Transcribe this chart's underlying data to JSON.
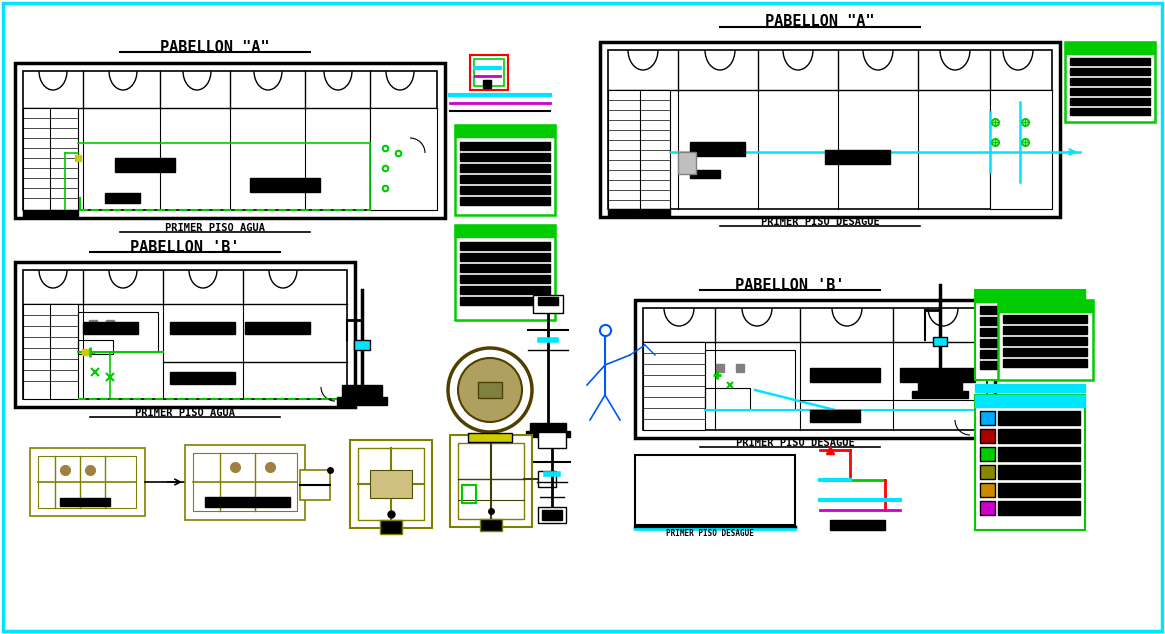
{
  "bg_color": "#ffffff",
  "border_color": "#00e5ff",
  "colors": {
    "black": "#000000",
    "cyan": "#00e5ff",
    "green": "#00cc00",
    "yellow": "#cccc00",
    "red": "#cc0000",
    "magenta": "#cc00cc",
    "olive": "#808000",
    "gray": "#808080",
    "white": "#ffffff",
    "blue": "#0055ff",
    "dark_olive": "#504000"
  },
  "titles": {
    "pab_a_water": "PABELLON \"A\"",
    "pab_a_water_sub": "PRIMER PISO AGUA",
    "pab_a_drain": "PABELLON \"A\"",
    "pab_a_drain_sub": "PRIMER PISO DESAGUE",
    "pab_b_water": "PABELLON 'B'",
    "pab_b_water_sub": "PRIMER PISO AGUA",
    "pab_b_drain": "PABELLON 'B'",
    "pab_b_drain_sub": "PRIMER PISO DESAGUE"
  }
}
